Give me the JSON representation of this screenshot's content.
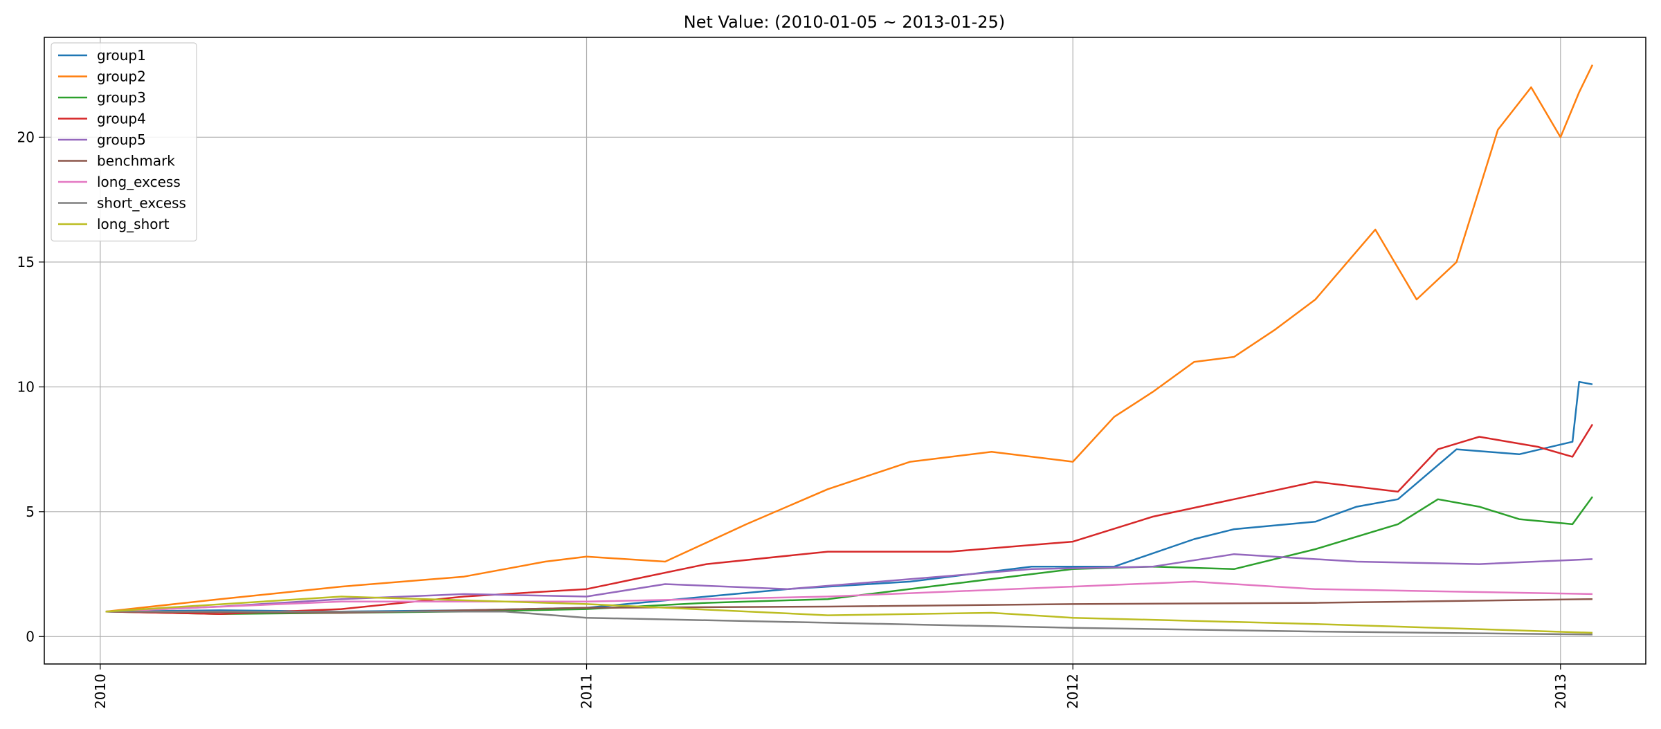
{
  "chart_data": {
    "type": "line",
    "title": "Net Value: (2010-01-05 ~ 2013-01-25)",
    "xlabel": "",
    "ylabel": "",
    "x_range": [
      "2009-11-20",
      "2013-03-06"
    ],
    "ylim": [
      -1.1,
      24.0
    ],
    "x_ticks": [
      {
        "label": "2010",
        "value": "2010-01-01"
      },
      {
        "label": "2011",
        "value": "2011-01-01"
      },
      {
        "label": "2012",
        "value": "2012-01-01"
      },
      {
        "label": "2013",
        "value": "2013-01-01"
      }
    ],
    "y_ticks": [
      0,
      5,
      10,
      15,
      20
    ],
    "grid": true,
    "legend_position": "top-left",
    "series": [
      {
        "name": "group1",
        "color": "#1f77b4",
        "points": [
          [
            "2010-01-05",
            1.0
          ],
          [
            "2010-04-01",
            1.05
          ],
          [
            "2010-07-01",
            1.0
          ],
          [
            "2010-10-01",
            1.05
          ],
          [
            "2011-01-01",
            1.15
          ],
          [
            "2011-04-01",
            1.6
          ],
          [
            "2011-06-01",
            1.9
          ],
          [
            "2011-09-01",
            2.2
          ],
          [
            "2011-12-01",
            2.8
          ],
          [
            "2012-02-01",
            2.8
          ],
          [
            "2012-04-01",
            3.9
          ],
          [
            "2012-05-01",
            4.3
          ],
          [
            "2012-07-01",
            4.6
          ],
          [
            "2012-08-01",
            5.2
          ],
          [
            "2012-09-01",
            5.5
          ],
          [
            "2012-10-15",
            7.5
          ],
          [
            "2012-12-01",
            7.3
          ],
          [
            "2013-01-10",
            7.8
          ],
          [
            "2013-01-15",
            10.2
          ],
          [
            "2013-01-25",
            10.1
          ]
        ]
      },
      {
        "name": "group2",
        "color": "#ff7f0e",
        "points": [
          [
            "2010-01-05",
            1.0
          ],
          [
            "2010-04-01",
            1.5
          ],
          [
            "2010-07-01",
            2.0
          ],
          [
            "2010-10-01",
            2.4
          ],
          [
            "2010-12-01",
            3.0
          ],
          [
            "2011-01-01",
            3.2
          ],
          [
            "2011-03-01",
            3.0
          ],
          [
            "2011-05-01",
            4.5
          ],
          [
            "2011-07-01",
            5.9
          ],
          [
            "2011-09-01",
            7.0
          ],
          [
            "2011-11-01",
            7.4
          ],
          [
            "2012-01-01",
            7.0
          ],
          [
            "2012-02-01",
            8.8
          ],
          [
            "2012-03-01",
            9.8
          ],
          [
            "2012-04-01",
            11.0
          ],
          [
            "2012-05-01",
            11.2
          ],
          [
            "2012-06-01",
            12.3
          ],
          [
            "2012-07-01",
            13.5
          ],
          [
            "2012-08-15",
            16.3
          ],
          [
            "2012-09-15",
            13.5
          ],
          [
            "2012-10-15",
            15.0
          ],
          [
            "2012-11-15",
            20.3
          ],
          [
            "2012-12-10",
            22.0
          ],
          [
            "2013-01-01",
            20.0
          ],
          [
            "2013-01-15",
            21.8
          ],
          [
            "2013-01-25",
            22.9
          ]
        ]
      },
      {
        "name": "group3",
        "color": "#2ca02c",
        "points": [
          [
            "2010-01-05",
            1.0
          ],
          [
            "2010-04-01",
            0.9
          ],
          [
            "2010-07-01",
            0.95
          ],
          [
            "2010-10-01",
            1.0
          ],
          [
            "2011-01-01",
            1.1
          ],
          [
            "2011-04-01",
            1.35
          ],
          [
            "2011-07-01",
            1.5
          ],
          [
            "2011-10-01",
            2.1
          ],
          [
            "2012-01-01",
            2.7
          ],
          [
            "2012-03-01",
            2.8
          ],
          [
            "2012-05-01",
            2.7
          ],
          [
            "2012-07-01",
            3.5
          ],
          [
            "2012-09-01",
            4.5
          ],
          [
            "2012-10-01",
            5.5
          ],
          [
            "2012-11-01",
            5.2
          ],
          [
            "2012-12-01",
            4.7
          ],
          [
            "2013-01-10",
            4.5
          ],
          [
            "2013-01-25",
            5.6
          ]
        ]
      },
      {
        "name": "group4",
        "color": "#d62728",
        "points": [
          [
            "2010-01-05",
            1.0
          ],
          [
            "2010-04-01",
            0.9
          ],
          [
            "2010-07-01",
            1.1
          ],
          [
            "2010-10-01",
            1.6
          ],
          [
            "2011-01-01",
            1.9
          ],
          [
            "2011-04-01",
            2.9
          ],
          [
            "2011-07-01",
            3.4
          ],
          [
            "2011-10-01",
            3.4
          ],
          [
            "2012-01-01",
            3.8
          ],
          [
            "2012-03-01",
            4.8
          ],
          [
            "2012-05-01",
            5.5
          ],
          [
            "2012-07-01",
            6.2
          ],
          [
            "2012-09-01",
            5.8
          ],
          [
            "2012-10-01",
            7.5
          ],
          [
            "2012-11-01",
            8.0
          ],
          [
            "2012-12-15",
            7.6
          ],
          [
            "2013-01-10",
            7.2
          ],
          [
            "2013-01-25",
            8.5
          ]
        ]
      },
      {
        "name": "group5",
        "color": "#9467bd",
        "points": [
          [
            "2010-01-05",
            1.0
          ],
          [
            "2010-04-01",
            1.2
          ],
          [
            "2010-07-01",
            1.5
          ],
          [
            "2010-10-01",
            1.7
          ],
          [
            "2011-01-01",
            1.6
          ],
          [
            "2011-03-01",
            2.1
          ],
          [
            "2011-06-01",
            1.9
          ],
          [
            "2011-09-01",
            2.3
          ],
          [
            "2011-12-01",
            2.7
          ],
          [
            "2012-03-01",
            2.8
          ],
          [
            "2012-05-01",
            3.3
          ],
          [
            "2012-08-01",
            3.0
          ],
          [
            "2012-11-01",
            2.9
          ],
          [
            "2013-01-25",
            3.1
          ]
        ]
      },
      {
        "name": "benchmark",
        "color": "#8c564b",
        "points": [
          [
            "2010-01-05",
            1.0
          ],
          [
            "2010-07-01",
            0.95
          ],
          [
            "2011-01-01",
            1.15
          ],
          [
            "2011-07-01",
            1.2
          ],
          [
            "2012-01-01",
            1.3
          ],
          [
            "2012-07-01",
            1.35
          ],
          [
            "2013-01-25",
            1.5
          ]
        ]
      },
      {
        "name": "long_excess",
        "color": "#e377c2",
        "points": [
          [
            "2010-01-05",
            1.0
          ],
          [
            "2010-07-01",
            1.4
          ],
          [
            "2011-01-01",
            1.4
          ],
          [
            "2011-07-01",
            1.6
          ],
          [
            "2012-01-01",
            2.0
          ],
          [
            "2012-04-01",
            2.2
          ],
          [
            "2012-07-01",
            1.9
          ],
          [
            "2013-01-25",
            1.7
          ]
        ]
      },
      {
        "name": "short_excess",
        "color": "#7f7f7f",
        "points": [
          [
            "2010-01-05",
            1.0
          ],
          [
            "2010-07-01",
            1.0
          ],
          [
            "2010-11-01",
            1.0
          ],
          [
            "2011-01-01",
            0.75
          ],
          [
            "2011-07-01",
            0.55
          ],
          [
            "2012-01-01",
            0.35
          ],
          [
            "2012-07-01",
            0.2
          ],
          [
            "2013-01-25",
            0.08
          ]
        ]
      },
      {
        "name": "long_short",
        "color": "#bcbd22",
        "points": [
          [
            "2010-01-05",
            1.0
          ],
          [
            "2010-07-01",
            1.6
          ],
          [
            "2011-01-01",
            1.3
          ],
          [
            "2011-07-01",
            0.85
          ],
          [
            "2011-11-01",
            0.95
          ],
          [
            "2012-01-01",
            0.75
          ],
          [
            "2012-07-01",
            0.5
          ],
          [
            "2013-01-25",
            0.15
          ]
        ]
      }
    ]
  }
}
